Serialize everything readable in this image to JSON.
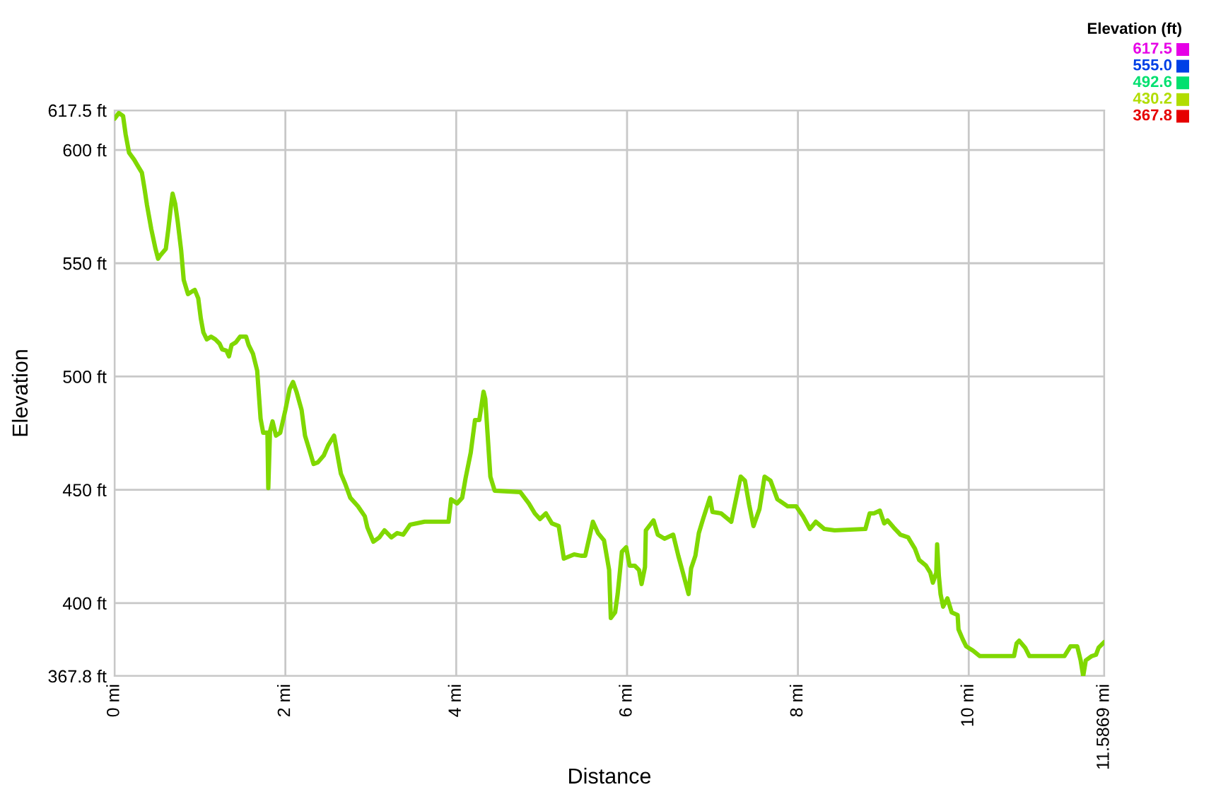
{
  "chart_data": {
    "type": "line",
    "xlabel": "Distance",
    "ylabel": "Elevation",
    "clabel": "Elevation (ft)",
    "x": [
      0.0,
      0.05,
      0.1,
      0.13,
      0.17,
      0.23,
      0.28,
      0.32,
      0.35,
      0.38,
      0.43,
      0.48,
      0.51,
      0.53,
      0.6,
      0.63,
      0.66,
      0.68,
      0.71,
      0.74,
      0.78,
      0.81,
      0.86,
      0.91,
      0.94,
      0.98,
      1.01,
      1.04,
      1.08,
      1.13,
      1.18,
      1.23,
      1.26,
      1.31,
      1.34,
      1.37,
      1.42,
      1.47,
      1.54,
      1.57,
      1.62,
      1.67,
      1.71,
      1.74,
      1.79,
      1.8,
      1.82,
      1.85,
      1.89,
      1.94,
      2.0,
      2.05,
      2.09,
      2.13,
      2.19,
      2.23,
      2.28,
      2.33,
      2.38,
      2.45,
      2.5,
      2.57,
      2.62,
      2.65,
      2.7,
      2.76,
      2.85,
      2.93,
      2.96,
      3.03,
      3.1,
      3.16,
      3.24,
      3.31,
      3.38,
      3.46,
      3.54,
      3.63,
      3.91,
      3.94,
      4.01,
      4.07,
      4.11,
      4.17,
      4.22,
      4.27,
      4.32,
      4.34,
      4.4,
      4.45,
      4.75,
      4.85,
      4.92,
      4.98,
      5.05,
      5.12,
      5.2,
      5.26,
      5.38,
      5.46,
      5.51,
      5.6,
      5.66,
      5.73,
      5.79,
      5.81,
      5.86,
      5.89,
      5.94,
      5.99,
      6.03,
      6.09,
      6.14,
      6.17,
      6.21,
      6.22,
      6.31,
      6.36,
      6.44,
      6.54,
      6.6,
      6.65,
      6.72,
      6.75,
      6.8,
      6.84,
      6.89,
      6.97,
      7.0,
      7.1,
      7.22,
      7.33,
      7.38,
      7.43,
      7.48,
      7.55,
      7.61,
      7.68,
      7.76,
      7.88,
      7.98,
      8.06,
      8.14,
      8.21,
      8.31,
      8.43,
      8.79,
      8.84,
      8.89,
      8.96,
      9.01,
      9.05,
      9.12,
      9.2,
      9.29,
      9.37,
      9.42,
      9.5,
      9.55,
      9.58,
      9.62,
      9.63,
      9.65,
      9.67,
      9.7,
      9.75,
      9.8,
      9.87,
      9.88,
      9.93,
      9.97,
      10.05,
      10.13,
      10.53,
      10.56,
      10.59,
      10.66,
      10.71,
      11.12,
      11.19,
      11.27,
      11.31,
      11.34,
      11.37,
      11.44,
      11.49,
      11.52,
      11.5869
    ],
    "series": [
      {
        "color": "#80d800",
        "values": [
          613.8,
          616.3,
          615.0,
          606.9,
          598.8,
          595.7,
          592.5,
          590.0,
          583.2,
          575.7,
          565.1,
          556.3,
          552.0,
          553.2,
          556.3,
          565.1,
          575.1,
          580.7,
          576.3,
          568.2,
          555.7,
          542.6,
          536.4,
          537.6,
          538.2,
          534.5,
          525.7,
          519.5,
          516.4,
          517.6,
          516.4,
          514.5,
          512.0,
          511.4,
          508.9,
          513.9,
          515.1,
          517.6,
          517.6,
          513.9,
          510.1,
          502.6,
          481.4,
          475.2,
          475.2,
          450.8,
          475.8,
          480.2,
          473.9,
          475.2,
          485.2,
          494.5,
          497.6,
          493.3,
          485.2,
          473.9,
          467.7,
          461.4,
          462.1,
          465.2,
          469.6,
          473.9,
          463.3,
          457.1,
          452.7,
          446.5,
          442.7,
          438.3,
          433.4,
          427.1,
          429.0,
          432.1,
          429.0,
          430.9,
          430.2,
          434.6,
          435.2,
          435.9,
          435.9,
          445.8,
          444.0,
          446.5,
          455.2,
          466.4,
          480.8,
          480.8,
          493.3,
          490.2,
          455.8,
          449.6,
          449.0,
          444.0,
          439.6,
          437.1,
          439.6,
          435.2,
          434.0,
          419.6,
          421.5,
          420.9,
          420.9,
          435.9,
          430.9,
          427.7,
          414.6,
          393.4,
          395.9,
          404.0,
          422.7,
          424.6,
          416.5,
          416.5,
          414.6,
          408.4,
          415.9,
          432.1,
          436.5,
          430.2,
          428.4,
          430.2,
          420.9,
          414.0,
          404.0,
          415.3,
          420.9,
          430.9,
          437.1,
          446.5,
          440.2,
          439.6,
          435.9,
          455.8,
          454.0,
          443.3,
          434.0,
          441.5,
          455.8,
          454.0,
          445.8,
          442.7,
          442.7,
          438.3,
          432.7,
          435.9,
          432.7,
          432.1,
          432.7,
          439.6,
          439.6,
          440.8,
          435.2,
          436.5,
          433.4,
          430.2,
          429.0,
          424.0,
          419.0,
          416.5,
          413.4,
          409.0,
          413.4,
          425.9,
          412.1,
          404.0,
          398.4,
          402.1,
          395.9,
          394.7,
          388.4,
          384.0,
          380.9,
          379.0,
          376.6,
          376.6,
          382.2,
          383.4,
          380.3,
          376.6,
          376.6,
          380.9,
          380.9,
          374.7,
          367.8,
          374.7,
          376.6,
          377.2,
          380.3,
          382.8
        ]
      }
    ],
    "xlim": [
      0,
      11.5869
    ],
    "xticks": [
      {
        "value": 0,
        "label": "0 mi"
      },
      {
        "value": 2,
        "label": "2 mi"
      },
      {
        "value": 4,
        "label": "4 mi"
      },
      {
        "value": 6,
        "label": "6 mi"
      },
      {
        "value": 8,
        "label": "8 mi"
      },
      {
        "value": 10,
        "label": "10 mi"
      },
      {
        "value": 11.5869,
        "label": "11.5869 mi"
      }
    ],
    "ylim": [
      367.8,
      617.5
    ],
    "yticks": [
      {
        "value": 367.8,
        "label": "367.8 ft"
      },
      {
        "value": 400,
        "label": "400 ft"
      },
      {
        "value": 450,
        "label": "450 ft"
      },
      {
        "value": 500,
        "label": "500 ft"
      },
      {
        "value": 550,
        "label": "550 ft"
      },
      {
        "value": 600,
        "label": "600 ft"
      },
      {
        "value": 617.5,
        "label": "617.5 ft"
      }
    ],
    "clim": [
      367.8,
      617.5
    ],
    "cticks": [
      {
        "value": 617.5,
        "label": "617.5"
      },
      {
        "value": 555.0,
        "label": "555.0"
      },
      {
        "value": 492.6,
        "label": "492.6"
      },
      {
        "value": 430.2,
        "label": "430.2"
      },
      {
        "value": 367.8,
        "label": "367.8"
      }
    ],
    "colors": [
      "#e600e6",
      "#0040e6",
      "#00e070",
      "#b0e000",
      "#e60000"
    ],
    "grid": true,
    "marker": "none",
    "line_style": "solid"
  }
}
